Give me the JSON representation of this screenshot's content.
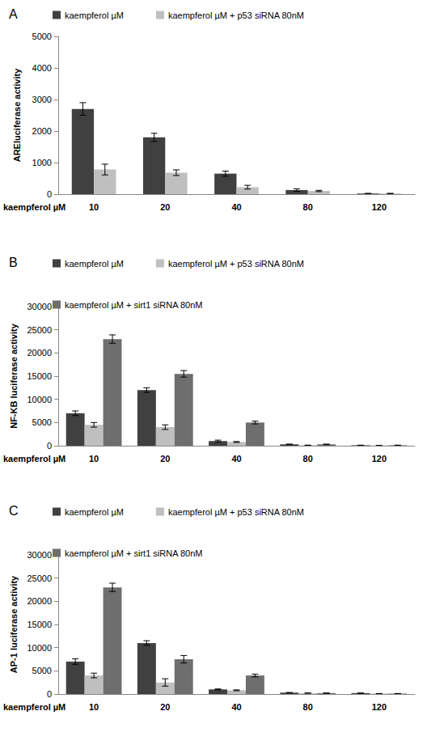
{
  "chart_data": [
    {
      "type": "bar",
      "title": "A",
      "ylabel": "AREluciferase activity",
      "xlabel": "kaempferol µM",
      "categories": [
        10,
        20,
        40,
        80,
        120
      ],
      "ylim": [
        0,
        5000
      ],
      "yticks": [
        0,
        1000,
        2000,
        3000,
        4000,
        5000
      ],
      "grid": false,
      "legend": "top",
      "series": [
        {
          "name": "kaempferol µM",
          "color": "#404040",
          "values": [
            2700,
            1800,
            650,
            130,
            20
          ],
          "errors": [
            200,
            130,
            80,
            40,
            5
          ]
        },
        {
          "name": "kaempferol µM + p53 siRNA 80nM",
          "color": "#bfbfbf",
          "values": [
            780,
            680,
            220,
            100,
            20
          ],
          "errors": [
            170,
            90,
            60,
            20,
            5
          ]
        }
      ]
    },
    {
      "type": "bar",
      "title": "B",
      "ylabel": "NF-KB luciferase activity",
      "xlabel": "kaempferol µM",
      "categories": [
        10,
        20,
        40,
        80,
        120
      ],
      "ylim": [
        0,
        30000
      ],
      "yticks": [
        0,
        5000,
        10000,
        15000,
        20000,
        25000,
        30000
      ],
      "grid": false,
      "legend": "top",
      "series": [
        {
          "name": "kaempferol µM",
          "color": "#404040",
          "values": [
            7000,
            12000,
            1000,
            300,
            100
          ],
          "errors": [
            500,
            500,
            200,
            50,
            20
          ]
        },
        {
          "name": "kaempferol µM + p53 siRNA 80nM",
          "color": "#bfbfbf",
          "values": [
            4500,
            4000,
            800,
            100,
            50
          ],
          "errors": [
            500,
            500,
            100,
            30,
            10
          ]
        },
        {
          "name": "kaempferol µM + sirt1 siRNA 80nM",
          "color": "#6e6e6e",
          "values": [
            23000,
            15500,
            5000,
            300,
            100
          ],
          "errors": [
            900,
            700,
            300,
            50,
            20
          ]
        }
      ]
    },
    {
      "type": "bar",
      "title": "C",
      "ylabel": "AP-1 luciferase activity",
      "xlabel": "kaempferol µM",
      "categories": [
        10,
        20,
        40,
        80,
        120
      ],
      "ylim": [
        0,
        30000
      ],
      "yticks": [
        0,
        5000,
        10000,
        15000,
        20000,
        25000,
        30000
      ],
      "grid": false,
      "legend": "top",
      "series": [
        {
          "name": "kaempferol µM",
          "color": "#404040",
          "values": [
            7000,
            11000,
            1000,
            300,
            200
          ],
          "errors": [
            600,
            500,
            100,
            30,
            20
          ]
        },
        {
          "name": "kaempferol µM + p53 siRNA 80nM",
          "color": "#bfbfbf",
          "values": [
            4000,
            2500,
            800,
            200,
            100
          ],
          "errors": [
            500,
            800,
            100,
            30,
            10
          ]
        },
        {
          "name": "kaempferol µM + sirt1 siRNA 80nM",
          "color": "#6e6e6e",
          "values": [
            23000,
            7500,
            4000,
            200,
            100
          ],
          "errors": [
            900,
            800,
            300,
            30,
            10
          ]
        }
      ]
    }
  ]
}
